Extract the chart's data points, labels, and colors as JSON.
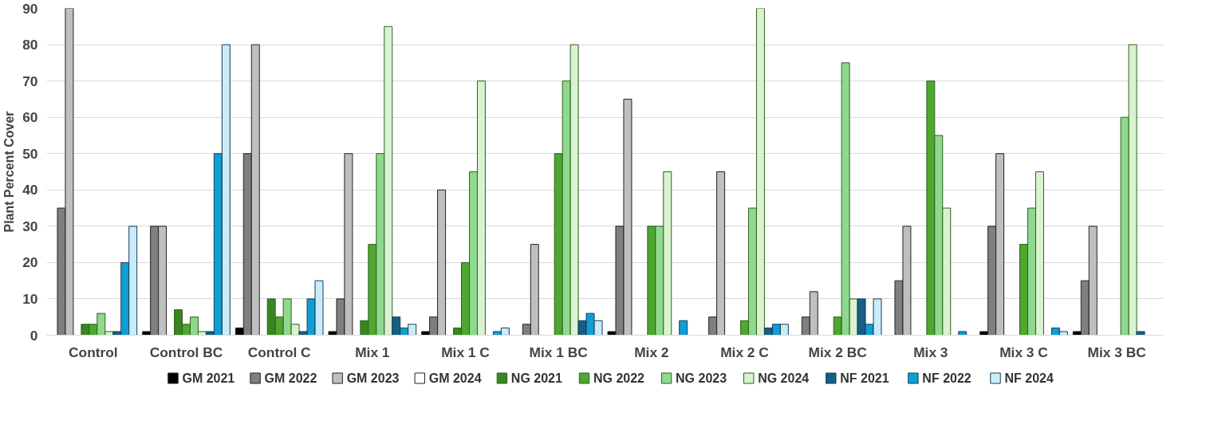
{
  "chart_data": {
    "type": "bar",
    "ylabel": "Plant Percent Cover",
    "categories": [
      "Control",
      "Control BC",
      "Control C",
      "Mix 1",
      "Mix 1 C",
      "Mix 1 BC",
      "Mix 2",
      "Mix 2 C",
      "Mix 2 BC",
      "Mix 3",
      "Mix 3 C",
      "Mix 3 BC"
    ],
    "series": [
      {
        "name": "GM 2021",
        "color": "#000000",
        "values": [
          null,
          1,
          2,
          1,
          1,
          null,
          1,
          null,
          null,
          null,
          1,
          1
        ]
      },
      {
        "name": "GM 2022",
        "color": "#7f7f7f",
        "values": [
          35,
          30,
          50,
          10,
          5,
          3,
          30,
          5,
          5,
          15,
          30,
          15
        ]
      },
      {
        "name": "GM 2023",
        "color": "#bfbfbf",
        "values": [
          90,
          30,
          80,
          50,
          40,
          25,
          65,
          45,
          12,
          30,
          50,
          30
        ]
      },
      {
        "name": "GM 2024",
        "color": "#ffffff",
        "values": [
          null,
          null,
          null,
          null,
          null,
          null,
          null,
          null,
          null,
          null,
          null,
          null
        ]
      },
      {
        "name": "NG 2021",
        "color": "#38861f",
        "values": [
          3,
          7,
          10,
          4,
          2,
          null,
          null,
          null,
          null,
          null,
          null,
          null
        ]
      },
      {
        "name": "NG 2022",
        "color": "#4ea72e",
        "values": [
          3,
          3,
          5,
          25,
          20,
          50,
          30,
          4,
          5,
          70,
          25,
          null
        ]
      },
      {
        "name": "NG 2023",
        "color": "#8ed98e",
        "values": [
          6,
          5,
          10,
          50,
          45,
          70,
          30,
          35,
          75,
          55,
          35,
          60
        ]
      },
      {
        "name": "NG 2024",
        "color": "#d9f2d0",
        "values": [
          1,
          1,
          3,
          85,
          70,
          80,
          45,
          90,
          10,
          35,
          45,
          80
        ]
      },
      {
        "name": "NF 2021",
        "color": "#156082",
        "values": [
          1,
          1,
          1,
          5,
          null,
          4,
          null,
          2,
          10,
          null,
          null,
          1
        ]
      },
      {
        "name": "NF 2022",
        "color": "#0f9ed5",
        "values": [
          20,
          50,
          10,
          2,
          1,
          6,
          4,
          3,
          3,
          1,
          2,
          null
        ]
      },
      {
        "name": "NF 2024",
        "color": "#c8ecfa",
        "values": [
          30,
          80,
          15,
          3,
          2,
          4,
          null,
          3,
          10,
          null,
          1,
          null
        ]
      }
    ],
    "ylim": [
      0,
      90
    ],
    "yticks": [
      0,
      10,
      20,
      30,
      40,
      50,
      60,
      70,
      80,
      90
    ],
    "grid": "y",
    "legend": "bottom"
  }
}
